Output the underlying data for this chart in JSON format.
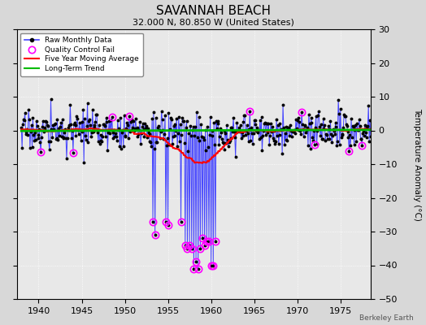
{
  "title": "SAVANNAH BEACH",
  "subtitle": "32.000 N, 80.850 W (United States)",
  "ylabel": "Temperature Anomaly (°C)",
  "xlim": [
    1937.5,
    1978.5
  ],
  "ylim": [
    -50,
    30
  ],
  "yticks": [
    -50,
    -40,
    -30,
    -20,
    -10,
    0,
    10,
    20,
    30
  ],
  "xticks": [
    1940,
    1945,
    1950,
    1955,
    1960,
    1965,
    1970,
    1975
  ],
  "bg_color": "#d8d8d8",
  "plot_bg_color": "#e8e8e8",
  "raw_line_color": "#4444ff",
  "raw_marker_color": "#000000",
  "qc_color": "#ff00ff",
  "moving_avg_color": "#ff0000",
  "trend_color": "#00bb00",
  "seed": 17,
  "start_year": 1938,
  "end_year": 1978,
  "months": 12,
  "watermark": "Berkeley Earth",
  "spikes": [
    [
      1953.25,
      -27
    ],
    [
      1953.5,
      -31
    ],
    [
      1954.75,
      -27
    ],
    [
      1955.0,
      -28
    ],
    [
      1956.5,
      -27
    ],
    [
      1957.0,
      -34
    ],
    [
      1957.25,
      -35
    ],
    [
      1957.5,
      -34
    ],
    [
      1957.75,
      -35
    ],
    [
      1958.0,
      -41
    ],
    [
      1958.25,
      -39
    ],
    [
      1958.5,
      -41
    ],
    [
      1958.75,
      -35
    ],
    [
      1959.0,
      -32
    ],
    [
      1959.25,
      -34
    ],
    [
      1959.5,
      -33
    ],
    [
      1959.75,
      -33
    ],
    [
      1960.0,
      -40
    ],
    [
      1960.25,
      -40
    ],
    [
      1960.5,
      -33
    ]
  ],
  "qc_extra": [
    1940.25,
    1944.0,
    1948.5,
    1950.5,
    1964.5,
    1970.5,
    1972.0,
    1976.0,
    1977.5
  ]
}
